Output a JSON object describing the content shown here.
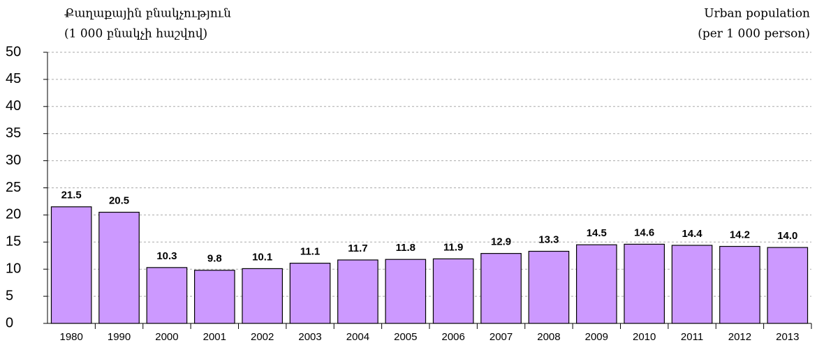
{
  "chart_data": {
    "type": "bar",
    "left_title": [
      "Քաղաքային բնակչություն",
      "(1 000 բնակչի հաշվով)"
    ],
    "right_title": [
      "Urban population",
      "(per 1 000 person)"
    ],
    "categories": [
      "1980",
      "1990",
      "2000",
      "2001",
      "2002",
      "2003",
      "2004",
      "2005",
      "2006",
      "2007",
      "2008",
      "2009",
      "2010",
      "2011",
      "2012",
      "2013"
    ],
    "values": [
      21.5,
      20.5,
      10.3,
      9.8,
      10.1,
      11.1,
      11.7,
      11.8,
      11.9,
      12.9,
      13.3,
      14.5,
      14.6,
      14.4,
      14.2,
      14.0
    ],
    "value_labels": [
      "21.5",
      "20.5",
      "10.3",
      "9.8",
      "10.1",
      "11.1",
      "11.7",
      "11.8",
      "11.9",
      "12.9",
      "13.3",
      "14.5",
      "14.6",
      "14.4",
      "14.2",
      "14.0"
    ],
    "color": "#cc99ff",
    "ylim": [
      0,
      50
    ],
    "yticks": [
      0,
      5,
      10,
      15,
      20,
      25,
      30,
      35,
      40,
      45,
      50
    ],
    "grid": true
  }
}
